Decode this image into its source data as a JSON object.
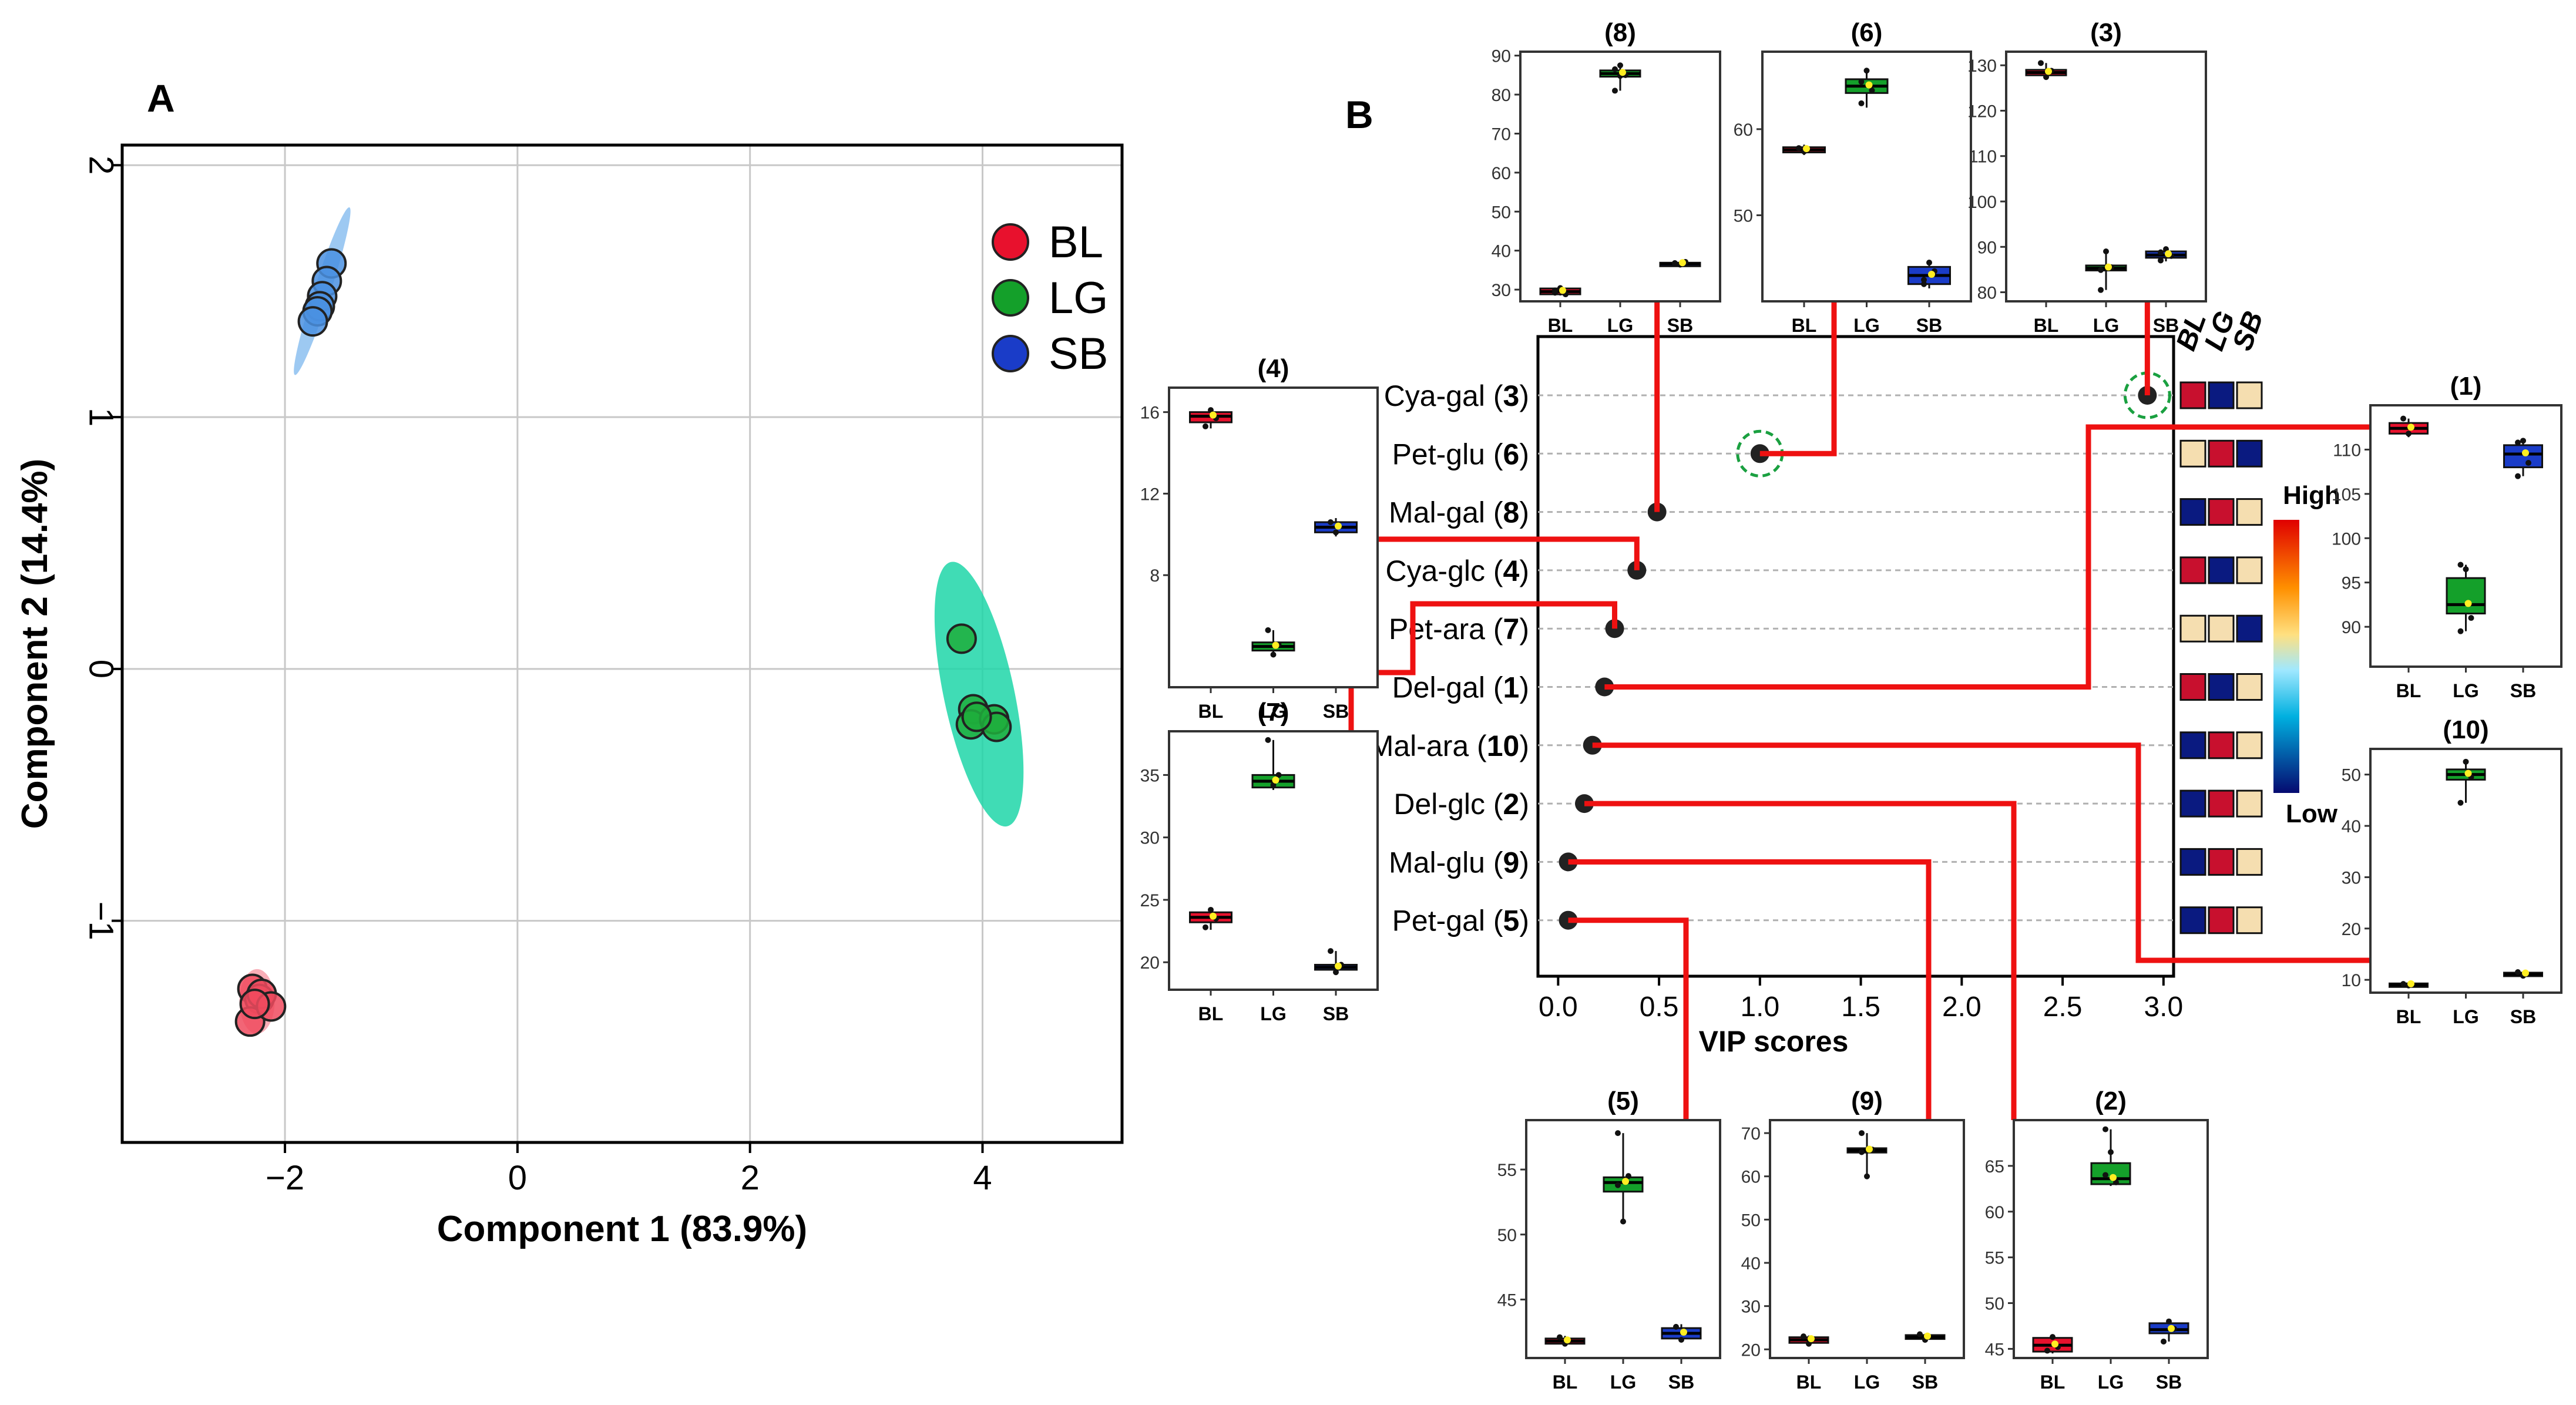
{
  "panel_labels": {
    "a": "A",
    "b": "B"
  },
  "colors": {
    "BL": "#e8112d",
    "LG": "#14a02a",
    "SB": "#1a3cc8",
    "BL_pt": "#f04a5e",
    "LG_pt": "#1fae3c",
    "SB_pt": "#4a90e2",
    "LG_ellipse": "#1fd6a8",
    "red_line": "#ee1111",
    "heat_high": "#c8102e",
    "heat_low": "#0a1a80",
    "heat_mid": "#f5deb0"
  },
  "chart_data": [
    {
      "type": "scatter",
      "title": "",
      "xlabel": "Component 1 (83.9%)",
      "ylabel": "Component 2 (14.4%)",
      "xlim": [
        -3.4,
        5.2
      ],
      "ylim": [
        -1.88,
        2.08
      ],
      "xticks": [
        -2,
        0,
        2,
        4
      ],
      "yticks": [
        -1,
        0,
        1,
        2
      ],
      "xtick_labels": [
        "−2",
        "0",
        "2",
        "4"
      ],
      "ytick_labels": [
        "−1",
        "0",
        "1",
        "2"
      ],
      "grid": true,
      "legend": {
        "position": "top-right",
        "entries": [
          "BL",
          "LG",
          "SB"
        ]
      },
      "series": [
        {
          "name": "BL",
          "x": [
            -2.28,
            -2.22,
            -2.2,
            -2.3,
            -2.12,
            -2.26
          ],
          "y": [
            -1.27,
            -1.31,
            -1.29,
            -1.4,
            -1.34,
            -1.33
          ]
        },
        {
          "name": "LG",
          "x": [
            3.82,
            3.92,
            3.9,
            4.1,
            4.12,
            3.95
          ],
          "y": [
            0.12,
            -0.16,
            -0.22,
            -0.2,
            -0.23,
            -0.19
          ]
        },
        {
          "name": "SB",
          "x": [
            -1.6,
            -1.64,
            -1.68,
            -1.7,
            -1.72,
            -1.76
          ],
          "y": [
            1.61,
            1.54,
            1.48,
            1.44,
            1.42,
            1.38
          ]
        }
      ]
    },
    {
      "type": "scatter",
      "title": "",
      "xlabel": "VIP scores",
      "xlim": [
        -0.1,
        3.05
      ],
      "xticks": [
        0,
        0.5,
        1,
        1.5,
        2,
        2.5,
        3
      ],
      "xtick_labels": [
        "0.0",
        "0.5",
        "1.0",
        "1.5",
        "2.0",
        "2.5",
        "3.0"
      ],
      "compounds": [
        {
          "name": "Cya-gal",
          "num": "3",
          "vip": 2.92,
          "circled": true,
          "heat": [
            "high",
            "low",
            "mid"
          ]
        },
        {
          "name": "Pet-glu",
          "num": "6",
          "vip": 1.0,
          "circled": true,
          "heat": [
            "mid",
            "high",
            "low"
          ]
        },
        {
          "name": "Mal-gal",
          "num": "8",
          "vip": 0.49,
          "circled": false,
          "heat": [
            "low",
            "high",
            "mid"
          ]
        },
        {
          "name": "Cya-glc",
          "num": "4",
          "vip": 0.39,
          "circled": false,
          "heat": [
            "high",
            "low",
            "mid"
          ]
        },
        {
          "name": "Pet-ara",
          "num": "7",
          "vip": 0.28,
          "circled": false,
          "heat": [
            "mid",
            "mid",
            "low"
          ]
        },
        {
          "name": "Del-gal",
          "num": "1",
          "vip": 0.23,
          "circled": false,
          "heat": [
            "high",
            "low",
            "mid"
          ]
        },
        {
          "name": "Mal-ara",
          "num": "10",
          "vip": 0.17,
          "circled": false,
          "heat": [
            "low",
            "high",
            "mid"
          ]
        },
        {
          "name": "Del-glc",
          "num": "2",
          "vip": 0.13,
          "circled": false,
          "heat": [
            "low",
            "high",
            "mid"
          ]
        },
        {
          "name": "Mal-glu",
          "num": "9",
          "vip": 0.05,
          "circled": false,
          "heat": [
            "low",
            "high",
            "mid"
          ]
        },
        {
          "name": "Pet-gal",
          "num": "5",
          "vip": 0.05,
          "circled": false,
          "heat": [
            "low",
            "high",
            "mid"
          ]
        }
      ],
      "heat_headers": [
        "BL",
        "LG",
        "SB"
      ],
      "colorbar": {
        "high_label": "High",
        "low_label": "Low"
      }
    },
    {
      "type": "box",
      "id": "8",
      "title": "(8)",
      "ylim": [
        27,
        91
      ],
      "yticks": [
        30,
        40,
        50,
        60,
        70,
        80,
        90
      ],
      "categories": [
        "BL",
        "LG",
        "SB"
      ],
      "boxes": [
        {
          "q1": 28.8,
          "med": 29.5,
          "q3": 30.3,
          "lo": 28.5,
          "hi": 30.8,
          "points": [
            29.2,
            30.4,
            28.8,
            29.8
          ]
        },
        {
          "q1": 84.6,
          "med": 85.4,
          "q3": 86.2,
          "lo": 81,
          "hi": 88,
          "points": [
            81,
            87.5,
            85,
            86.5,
            84.8
          ]
        },
        {
          "q1": 36.3,
          "med": 36.6,
          "q3": 36.9,
          "lo": 36,
          "hi": 37.2,
          "points": [
            36.8,
            36.4,
            37.1
          ]
        }
      ]
    },
    {
      "type": "box",
      "id": "6",
      "title": "(6)",
      "ylim": [
        40,
        69
      ],
      "yticks": [
        50,
        60
      ],
      "categories": [
        "BL",
        "LG",
        "SB"
      ],
      "boxes": [
        {
          "q1": 57.3,
          "med": 57.6,
          "q3": 57.9,
          "lo": 57,
          "hi": 58.2,
          "points": [
            57.8,
            57.4
          ]
        },
        {
          "q1": 64.2,
          "med": 65,
          "q3": 65.8,
          "lo": 62.5,
          "hi": 67,
          "points": [
            63,
            66.8,
            64.5,
            65.5
          ]
        },
        {
          "q1": 42,
          "med": 43,
          "q3": 44,
          "lo": 41.5,
          "hi": 44.8,
          "points": [
            42,
            44.5,
            43.5,
            42.5
          ]
        }
      ]
    },
    {
      "type": "box",
      "id": "3",
      "title": "(3)",
      "ylim": [
        78,
        133
      ],
      "yticks": [
        80,
        90,
        100,
        110,
        120,
        130
      ],
      "categories": [
        "BL",
        "LG",
        "SB"
      ],
      "boxes": [
        {
          "q1": 127.8,
          "med": 128.4,
          "q3": 129,
          "lo": 127,
          "hi": 130.5,
          "points": [
            130.5,
            127.4,
            128.8
          ]
        },
        {
          "q1": 84.8,
          "med": 85.3,
          "q3": 85.9,
          "lo": 80.5,
          "hi": 89,
          "points": [
            80.5,
            89,
            85.5,
            84.9
          ]
        },
        {
          "q1": 87.6,
          "med": 88.2,
          "q3": 89,
          "lo": 86.8,
          "hi": 89.6,
          "points": [
            87,
            89.5,
            88,
            88.8
          ]
        }
      ]
    },
    {
      "type": "box",
      "id": "4",
      "title": "(4)",
      "ylim": [
        2.5,
        17.2
      ],
      "yticks": [
        8,
        12,
        16
      ],
      "categories": [
        "BL",
        "LG",
        "SB"
      ],
      "boxes": [
        {
          "q1": 15.5,
          "med": 15.8,
          "q3": 16,
          "lo": 15.2,
          "hi": 16.2,
          "points": [
            15.3,
            16.1,
            15.7
          ]
        },
        {
          "q1": 4.3,
          "med": 4.5,
          "q3": 4.7,
          "lo": 4.1,
          "hi": 5.3,
          "points": [
            5.3,
            4.1,
            4.6
          ]
        },
        {
          "q1": 10.1,
          "med": 10.35,
          "q3": 10.6,
          "lo": 9.9,
          "hi": 10.8,
          "points": [
            10.6,
            10.1
          ]
        }
      ]
    },
    {
      "type": "box",
      "id": "7",
      "title": "(7)",
      "ylim": [
        17.8,
        38.5
      ],
      "yticks": [
        20,
        25,
        30,
        35
      ],
      "categories": [
        "BL",
        "LG",
        "SB"
      ],
      "boxes": [
        {
          "q1": 23.2,
          "med": 23.6,
          "q3": 24,
          "lo": 22.6,
          "hi": 24.4,
          "points": [
            22.8,
            24.2,
            23.5
          ]
        },
        {
          "q1": 34,
          "med": 34.5,
          "q3": 35,
          "lo": 33.8,
          "hi": 37.8,
          "points": [
            37.8,
            34.2,
            35
          ]
        },
        {
          "q1": 19.4,
          "med": 19.6,
          "q3": 19.8,
          "lo": 19.1,
          "hi": 20.9,
          "points": [
            20.9,
            19.2,
            19.8
          ]
        }
      ]
    },
    {
      "type": "box",
      "id": "1",
      "title": "(1)",
      "ylim": [
        85.5,
        115
      ],
      "yticks": [
        90,
        95,
        100,
        105,
        110
      ],
      "categories": [
        "BL",
        "LG",
        "SB"
      ],
      "boxes": [
        {
          "q1": 111.8,
          "med": 112.4,
          "q3": 113,
          "lo": 111.4,
          "hi": 113.5,
          "points": [
            113.5,
            111.8
          ]
        },
        {
          "q1": 91.5,
          "med": 92.5,
          "q3": 95.5,
          "lo": 89.5,
          "hi": 97,
          "points": [
            97,
            96.5,
            91,
            89.5
          ]
        },
        {
          "q1": 108,
          "med": 109.5,
          "q3": 110.5,
          "lo": 107,
          "hi": 111,
          "points": [
            107,
            111,
            108.5,
            110.8
          ]
        }
      ]
    },
    {
      "type": "box",
      "id": "10",
      "title": "(10)",
      "ylim": [
        7.5,
        55
      ],
      "yticks": [
        10,
        20,
        30,
        40,
        50
      ],
      "categories": [
        "BL",
        "LG",
        "SB"
      ],
      "boxes": [
        {
          "q1": 8.7,
          "med": 9,
          "q3": 9.3,
          "lo": 8.5,
          "hi": 9.5,
          "points": [
            9.2,
            8.9
          ]
        },
        {
          "q1": 49,
          "med": 50,
          "q3": 51,
          "lo": 44.5,
          "hi": 53,
          "points": [
            44.5,
            52.5,
            49.5
          ]
        },
        {
          "q1": 10.8,
          "med": 11.1,
          "q3": 11.4,
          "lo": 10.5,
          "hi": 11.6,
          "points": [
            11.5,
            10.8
          ]
        }
      ]
    },
    {
      "type": "box",
      "id": "5",
      "title": "(5)",
      "ylim": [
        40.5,
        58.8
      ],
      "yticks": [
        45,
        50,
        55
      ],
      "categories": [
        "BL",
        "LG",
        "SB"
      ],
      "boxes": [
        {
          "q1": 41.6,
          "med": 41.8,
          "q3": 42,
          "lo": 41.4,
          "hi": 42.2,
          "points": [
            42.1,
            41.6
          ]
        },
        {
          "q1": 53.3,
          "med": 54,
          "q3": 54.4,
          "lo": 51,
          "hi": 57.8,
          "points": [
            57.8,
            51,
            54.5,
            53.8
          ]
        },
        {
          "q1": 42,
          "med": 42.4,
          "q3": 42.8,
          "lo": 41.7,
          "hi": 43.1,
          "points": [
            42.9,
            41.9
          ]
        }
      ]
    },
    {
      "type": "box",
      "id": "9",
      "title": "(9)",
      "ylim": [
        18,
        73
      ],
      "yticks": [
        20,
        30,
        40,
        50,
        60,
        70
      ],
      "categories": [
        "BL",
        "LG",
        "SB"
      ],
      "boxes": [
        {
          "q1": 21.5,
          "med": 22.2,
          "q3": 22.8,
          "lo": 21,
          "hi": 23.2,
          "points": [
            23,
            21.3
          ]
        },
        {
          "q1": 65.5,
          "med": 66,
          "q3": 66.5,
          "lo": 60,
          "hi": 70,
          "points": [
            70,
            60,
            66.2,
            65.6
          ]
        },
        {
          "q1": 22.4,
          "med": 22.8,
          "q3": 23.3,
          "lo": 22,
          "hi": 23.6,
          "points": [
            23.5,
            22.2
          ]
        }
      ]
    },
    {
      "type": "box",
      "id": "2",
      "title": "(2)",
      "ylim": [
        44,
        70
      ],
      "yticks": [
        45,
        50,
        55,
        60,
        65
      ],
      "categories": [
        "BL",
        "LG",
        "SB"
      ],
      "boxes": [
        {
          "q1": 44.7,
          "med": 45.4,
          "q3": 46.2,
          "lo": 44.5,
          "hi": 46.5,
          "points": [
            44.8,
            46.3,
            45.2
          ]
        },
        {
          "q1": 63,
          "med": 63.6,
          "q3": 65.3,
          "lo": 62.8,
          "hi": 69,
          "points": [
            69,
            66.5,
            63.2,
            64
          ]
        },
        {
          "q1": 46.7,
          "med": 47.1,
          "q3": 47.8,
          "lo": 45.8,
          "hi": 48.2,
          "points": [
            45.8,
            48,
            47.2
          ]
        }
      ]
    }
  ]
}
